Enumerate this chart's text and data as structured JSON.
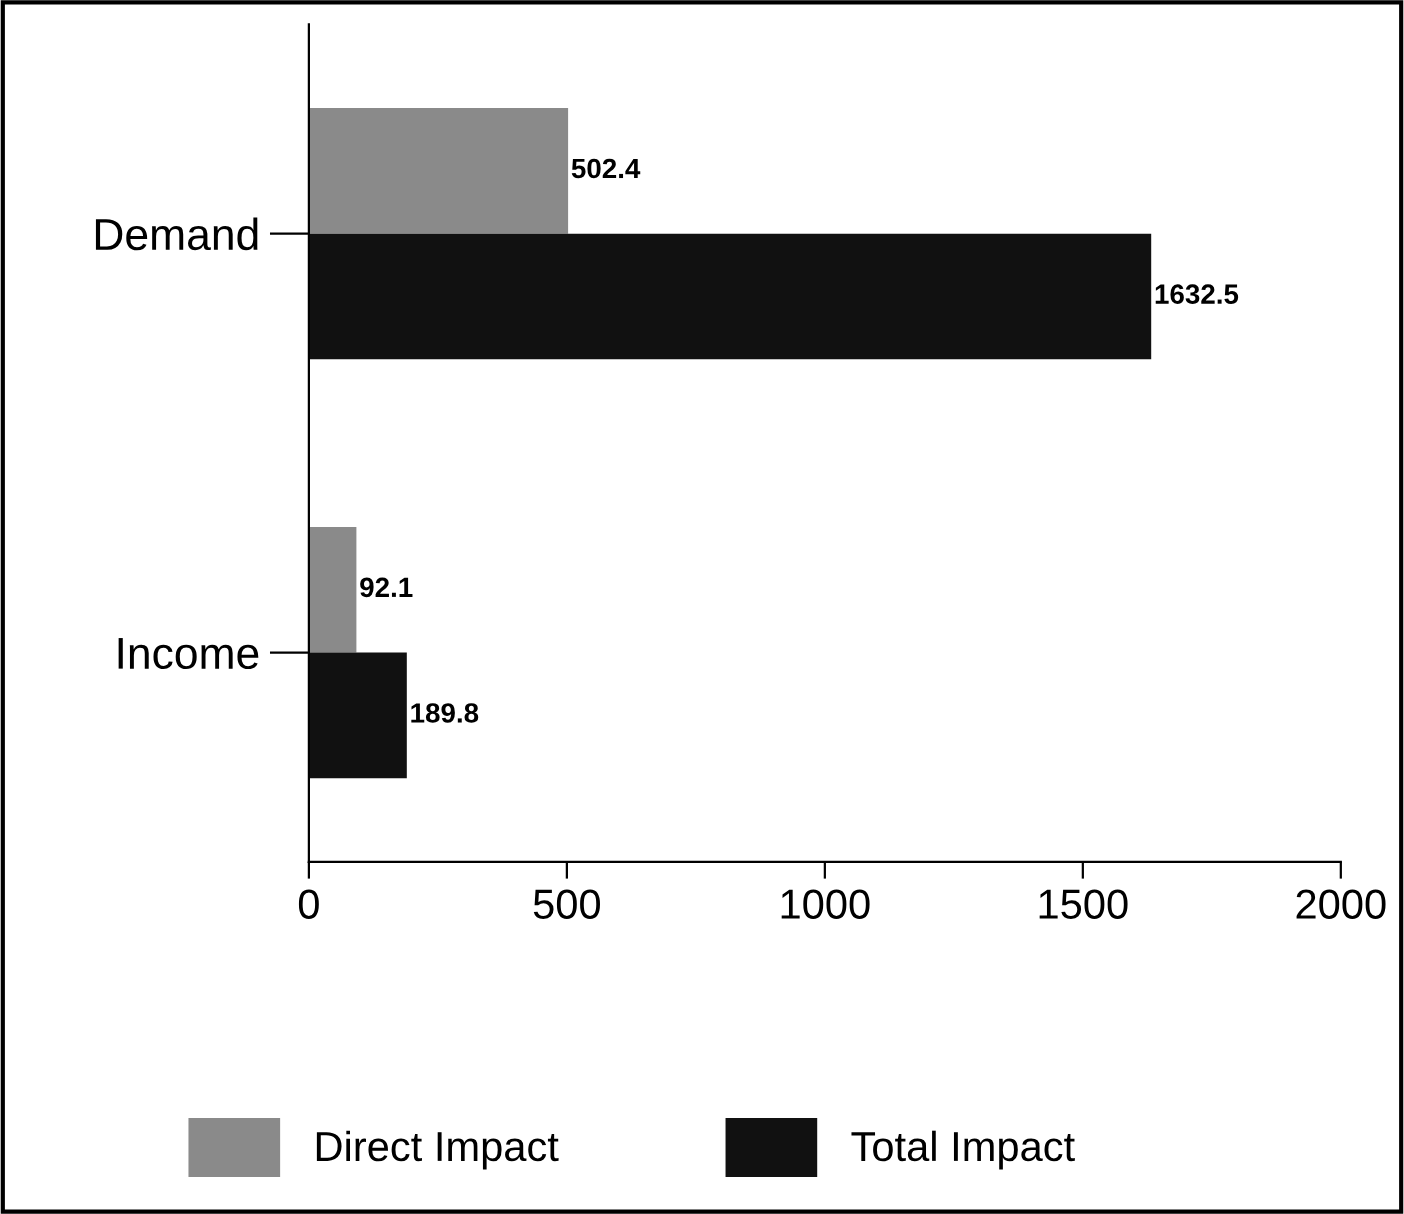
{
  "chart_data": {
    "type": "bar",
    "orientation": "horizontal",
    "categories": [
      "Demand",
      "Income"
    ],
    "series": [
      {
        "name": "Direct Impact",
        "color": "#8a8a8a",
        "values": [
          502.4,
          92.1
        ]
      },
      {
        "name": "Total Impact",
        "color": "#111111",
        "values": [
          1632.5,
          189.8
        ]
      }
    ],
    "xlim": [
      0,
      2000
    ],
    "xticks": [
      0,
      500,
      1000,
      1500,
      2000
    ],
    "data_labels": true,
    "legend": "bottom",
    "grid": false
  }
}
